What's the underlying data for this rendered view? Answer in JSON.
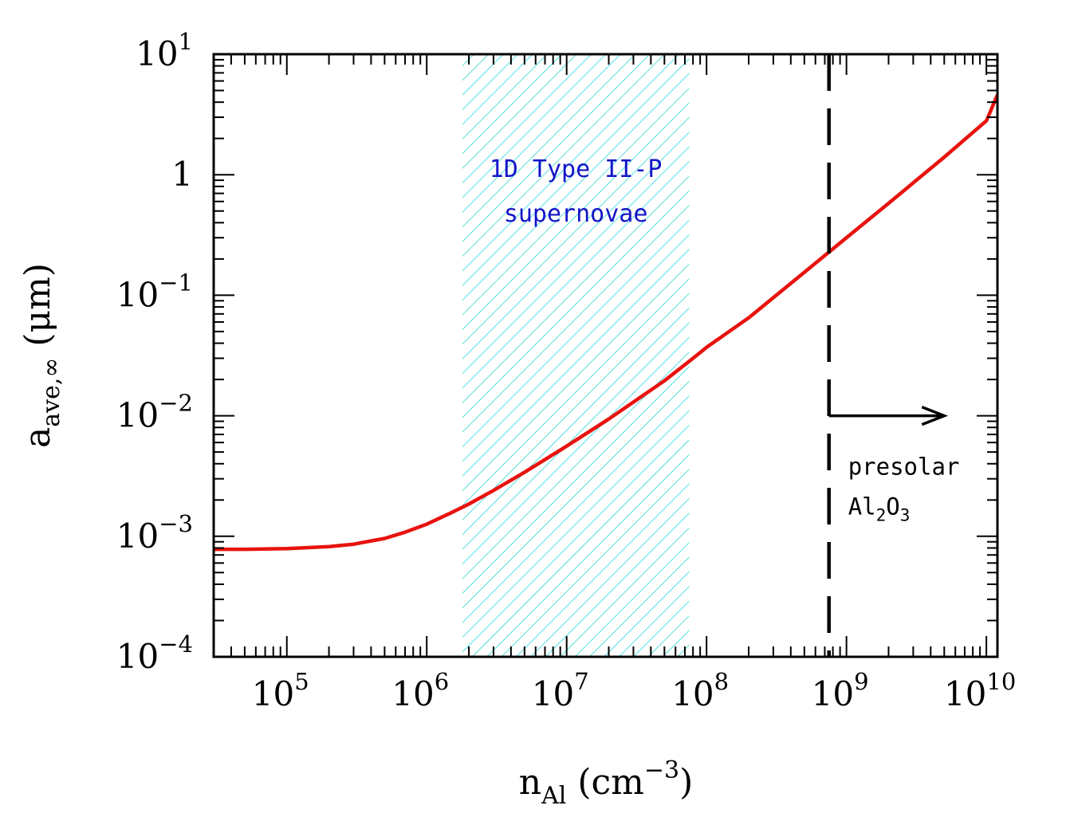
{
  "chart_data": {
    "type": "line",
    "xlabel": {
      "base": "n",
      "sub": "Al",
      "unit_open": " (cm",
      "unit_sup": "−3",
      "unit_close": ")"
    },
    "ylabel": {
      "base": "a",
      "sub": "ave,∞",
      "rest": " (μm)"
    },
    "x_scale": "log",
    "y_scale": "log",
    "xlim": [
      30000,
      12000000000
    ],
    "ylim": [
      0.0001,
      10
    ],
    "grid": false,
    "legend": "none",
    "x_ticks": [
      {
        "value": 100000,
        "base": "10",
        "exp": "5"
      },
      {
        "value": 1000000,
        "base": "10",
        "exp": "6"
      },
      {
        "value": 10000000,
        "base": "10",
        "exp": "7"
      },
      {
        "value": 100000000,
        "base": "10",
        "exp": "8"
      },
      {
        "value": 1000000000,
        "base": "10",
        "exp": "9"
      },
      {
        "value": 10000000000,
        "base": "10",
        "exp": "10"
      }
    ],
    "y_ticks": [
      {
        "value": 0.0001,
        "base": "10",
        "exp": "−4"
      },
      {
        "value": 0.001,
        "base": "10",
        "exp": "−3"
      },
      {
        "value": 0.01,
        "base": "10",
        "exp": "−2"
      },
      {
        "value": 0.1,
        "base": "10",
        "exp": "−1"
      },
      {
        "value": 1,
        "base": "1",
        "exp": ""
      },
      {
        "value": 10,
        "base": "10",
        "exp": "1"
      }
    ],
    "series": [
      {
        "color": "#e8130f",
        "x": [
          30000,
          50000,
          100000,
          200000,
          300000,
          500000,
          700000,
          1000000,
          1500000,
          2000000,
          3000000,
          5000000,
          10000000,
          20000000,
          50000000,
          80000000,
          100000000,
          200000000,
          500000000,
          1000000000,
          2000000000,
          5000000000,
          10000000000,
          12000000000
        ],
        "y": [
          0.00078,
          0.00078,
          0.00079,
          0.00082,
          0.00086,
          0.00096,
          0.00108,
          0.00126,
          0.00157,
          0.00185,
          0.0024,
          0.0034,
          0.0056,
          0.0094,
          0.0195,
          0.03,
          0.037,
          0.065,
          0.155,
          0.3,
          0.58,
          1.4,
          2.8,
          4.6
        ]
      }
    ],
    "shaded_band": {
      "x_range": [
        1800000,
        75000000
      ],
      "color": "#2ad6d6",
      "label_lines": [
        "1D Type II-P",
        "supernovae"
      ]
    },
    "vertical_line": {
      "x": 750000000,
      "style": "dashed",
      "color": "#000000"
    },
    "annotation": {
      "arrow_from_x": 750000000,
      "arrow_to_x": 5000000000,
      "arrow_y": 0.01,
      "text_line1": "presolar",
      "text_line2": {
        "base1": "Al",
        "sub1": "2",
        "base2": "O",
        "sub2": "3"
      }
    }
  }
}
